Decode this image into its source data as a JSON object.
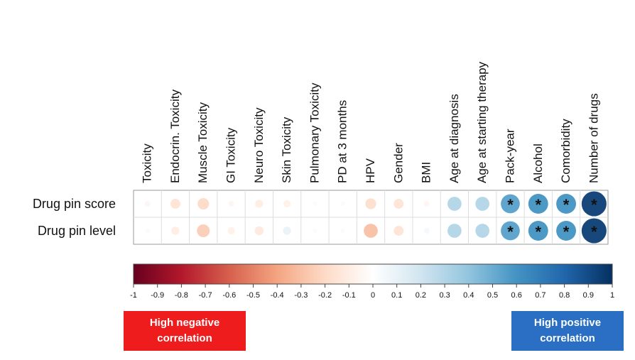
{
  "chart_data": {
    "type": "heatmap",
    "style": "correlation-circles",
    "columns": [
      "Toxicity",
      "Endocrin. Toxicity",
      "Muscle Toxicity",
      "GI Toxicity",
      "Neuro Toxicity",
      "Skin Toxicity",
      "Pulmonary Toxicity",
      "PD at 3 months",
      "HPV",
      "Gender",
      "BMI",
      "Age at diagnosis",
      "Age at starting therapy",
      "Pack-year",
      "Alcohol",
      "Comorbidity",
      "Number of drugs"
    ],
    "rows": [
      {
        "label": "Drug pin score",
        "values": [
          -0.05,
          -0.15,
          -0.2,
          -0.05,
          -0.1,
          -0.08,
          -0.03,
          -0.03,
          -0.18,
          -0.15,
          -0.05,
          0.3,
          0.3,
          0.55,
          0.6,
          0.6,
          0.95
        ],
        "significant": [
          false,
          false,
          false,
          false,
          false,
          false,
          false,
          false,
          false,
          false,
          false,
          false,
          false,
          true,
          true,
          true,
          true
        ]
      },
      {
        "label": "Drug pin level",
        "values": [
          -0.03,
          -0.1,
          -0.25,
          -0.08,
          -0.12,
          0.1,
          -0.03,
          -0.03,
          -0.3,
          -0.15,
          0.05,
          0.3,
          0.3,
          0.55,
          0.6,
          0.6,
          0.95
        ],
        "significant": [
          false,
          false,
          false,
          false,
          false,
          false,
          false,
          false,
          false,
          false,
          false,
          false,
          false,
          true,
          true,
          true,
          true
        ]
      }
    ],
    "significance_marker": "*",
    "color_scale": {
      "range": [
        -1,
        1
      ],
      "ticks": [
        "-1",
        "-0.9",
        "-0.8",
        "-0.7",
        "-0.6",
        "-0.5",
        "-0.4",
        "-0.3",
        "-0.2",
        "-0.1",
        "0",
        "0.1",
        "0.2",
        "0.3",
        "0.4",
        "0.5",
        "0.6",
        "0.7",
        "0.8",
        "0.9",
        "1"
      ],
      "low_color": "#67001f",
      "mid_color": "#ffffff",
      "high_color": "#053061"
    },
    "annotations": {
      "negative": {
        "line1": "High negative",
        "line2": "correlation",
        "color": "#ee1c1c"
      },
      "positive": {
        "line1": "High positive",
        "line2": "correlation",
        "color": "#2a6fc4"
      }
    }
  }
}
